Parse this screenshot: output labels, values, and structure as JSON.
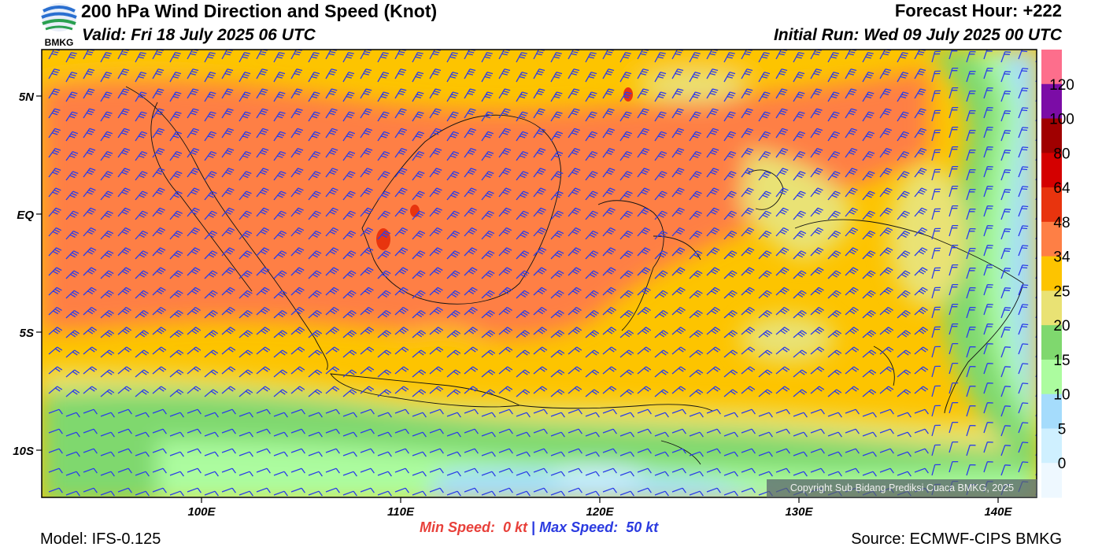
{
  "header": {
    "title": "200 hPa Wind Direction and Speed (Knot)",
    "valid": "Valid: Fri 18 July 2025 06 UTC",
    "forecast_hour": "Forecast Hour: +222",
    "initial_run": "Initial Run: Wed 09 July 2025 00 UTC",
    "logo_text": "BMKG"
  },
  "axes": {
    "lat_labels": [
      "5N",
      "EQ",
      "5S",
      "10S"
    ],
    "lon_labels": [
      "100E",
      "110E",
      "120E",
      "130E",
      "140E"
    ]
  },
  "colorbar": {
    "labels": [
      "120",
      "100",
      "80",
      "64",
      "48",
      "34",
      "25",
      "20",
      "15",
      "10",
      "5",
      "0"
    ],
    "colors": [
      "#fd6e8c",
      "#7b0ca6",
      "#a00000",
      "#d40000",
      "#e8340e",
      "#fe7f45",
      "#fdc400",
      "#e9e274",
      "#7fd86e",
      "#acfc9f",
      "#a5dcfc",
      "#cff0ff",
      "#eef8ff"
    ]
  },
  "speed_info": {
    "min_label": "Min Speed:",
    "min_value": "0 kt",
    "separator": "|",
    "max_label": "Max Speed:",
    "max_value": "50 kt"
  },
  "copyright": "Copyright Sub Bidang Prediksi Cuaca BMKG, 2025",
  "footer": {
    "model": "Model: IFS-0.125",
    "source": "Source: ECMWF-CIPS BMKG"
  },
  "barb_color": "#2b3de8"
}
